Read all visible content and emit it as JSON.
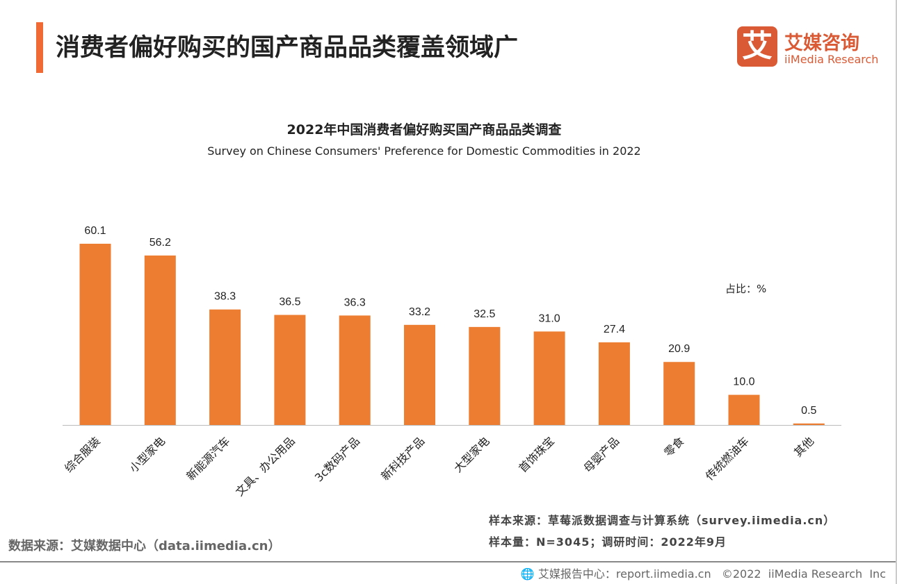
{
  "header": {
    "title": "消费者偏好购买的国产商品品类覆盖领域广"
  },
  "logo": {
    "mark": "艾",
    "cn": "艾媒咨询",
    "en": "iiMedia Research"
  },
  "chart_data": {
    "type": "bar",
    "title": "2022年中国消费者偏好购买国产商品品类调查",
    "subtitle": "Survey on Chinese Consumers' Preference for Domestic Commodities in 2022",
    "unit_label": "占比：%",
    "categories": [
      "综合服装",
      "小型家电",
      "新能源汽车",
      "文具、办公用品",
      "3c数码产品",
      "新科技产品",
      "大型家电",
      "首饰珠宝",
      "母婴产品",
      "零食",
      "传统燃油车",
      "其他"
    ],
    "values": [
      60.1,
      56.2,
      38.3,
      36.5,
      36.3,
      33.2,
      32.5,
      31.0,
      27.4,
      20.9,
      10.0,
      0.5
    ],
    "ylim": [
      0,
      65
    ],
    "grid": false,
    "bar_color": "#ed7d31"
  },
  "notes": {
    "sample_source": "样本来源：草莓派数据调查与计算系统（survey.iimedia.cn）",
    "sample_size": "样本量：N=3045；调研时间：2022年9月"
  },
  "source": "数据来源：艾媒数据中心（data.iimedia.cn）",
  "footer": "艾媒报告中心：report.iimedia.cn   ©2022  iiMedia Research  Inc"
}
